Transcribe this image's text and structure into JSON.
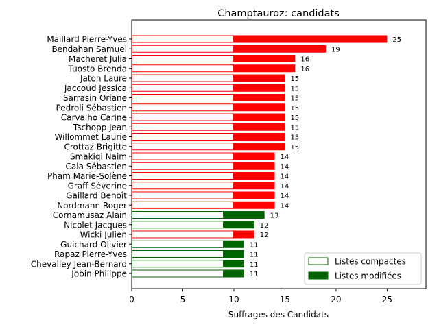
{
  "chart_data": {
    "type": "bar",
    "orientation": "horizontal",
    "title": "Champtauroz: candidats",
    "xlabel": "Suffrages des Candidats",
    "ylabel": "",
    "xlim": [
      0,
      28.8
    ],
    "xticks": [
      0,
      5,
      10,
      15,
      20,
      25
    ],
    "legend_position": "lower-right",
    "legend": [
      {
        "label": "Listes compactes",
        "style": "outline"
      },
      {
        "label": "Listes modifiées",
        "style": "filled"
      }
    ],
    "colors": {
      "red": "#ff0000",
      "green": "#006400"
    },
    "candidates": [
      {
        "name": "Maillard Pierre-Yves",
        "compact": 10,
        "total": 25,
        "color": "red"
      },
      {
        "name": "Bendahan Samuel",
        "compact": 10,
        "total": 19,
        "color": "red"
      },
      {
        "name": "Macheret Julia",
        "compact": 10,
        "total": 16,
        "color": "red"
      },
      {
        "name": "Tuosto Brenda",
        "compact": 10,
        "total": 16,
        "color": "red"
      },
      {
        "name": "Jaton Laure",
        "compact": 10,
        "total": 15,
        "color": "red"
      },
      {
        "name": "Jaccoud Jessica",
        "compact": 10,
        "total": 15,
        "color": "red"
      },
      {
        "name": "Sarrasin Oriane",
        "compact": 10,
        "total": 15,
        "color": "red"
      },
      {
        "name": "Pedroli Sébastien",
        "compact": 10,
        "total": 15,
        "color": "red"
      },
      {
        "name": "Carvalho Carine",
        "compact": 10,
        "total": 15,
        "color": "red"
      },
      {
        "name": "Tschopp Jean",
        "compact": 10,
        "total": 15,
        "color": "red"
      },
      {
        "name": "Willommet Laurie",
        "compact": 10,
        "total": 15,
        "color": "red"
      },
      {
        "name": "Crottaz Brigitte",
        "compact": 10,
        "total": 15,
        "color": "red"
      },
      {
        "name": "Smakiqi Naim",
        "compact": 10,
        "total": 14,
        "color": "red"
      },
      {
        "name": "Cala Sébastien",
        "compact": 10,
        "total": 14,
        "color": "red"
      },
      {
        "name": "Pham Marie-Solène",
        "compact": 10,
        "total": 14,
        "color": "red"
      },
      {
        "name": "Graff Séverine",
        "compact": 10,
        "total": 14,
        "color": "red"
      },
      {
        "name": "Gaillard Benoît",
        "compact": 10,
        "total": 14,
        "color": "red"
      },
      {
        "name": "Nordmann Roger",
        "compact": 10,
        "total": 14,
        "color": "red"
      },
      {
        "name": "Cornamusaz Alain",
        "compact": 9,
        "total": 13,
        "color": "green"
      },
      {
        "name": "Nicolet Jacques",
        "compact": 9,
        "total": 12,
        "color": "green"
      },
      {
        "name": "Wicki Julien",
        "compact": 10,
        "total": 12,
        "color": "red"
      },
      {
        "name": "Guichard Olivier",
        "compact": 9,
        "total": 11,
        "color": "green"
      },
      {
        "name": "Rapaz Pierre-Yves",
        "compact": 9,
        "total": 11,
        "color": "green"
      },
      {
        "name": "Chevalley Jean-Bernard",
        "compact": 9,
        "total": 11,
        "color": "green"
      },
      {
        "name": "Jobin Philippe",
        "compact": 9,
        "total": 11,
        "color": "green"
      }
    ]
  }
}
